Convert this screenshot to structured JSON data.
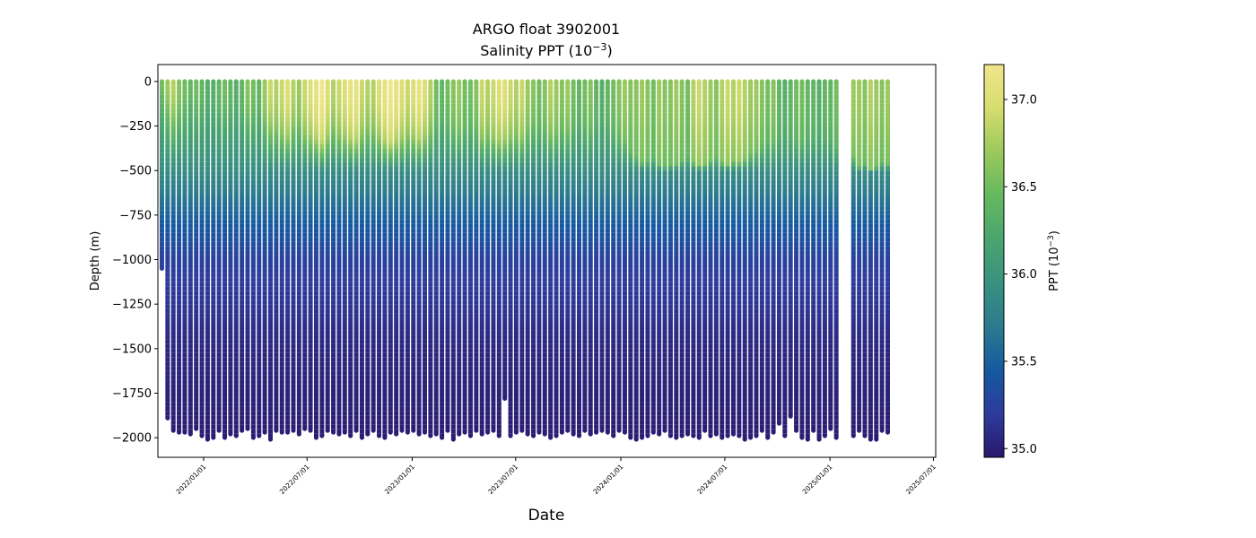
{
  "chart_data": {
    "type": "scatter",
    "title": "ARGO float 3902001",
    "subtitle_prefix": "Salinity PPT (10",
    "subtitle_exp": "−3",
    "subtitle_suffix": ")",
    "xlabel": "Date",
    "ylabel": "Depth (m)",
    "colorbar_label_prefix": "PPT (10",
    "colorbar_label_exp": "−3",
    "colorbar_label_suffix": ")",
    "x_range": [
      "2021-10-13",
      "2025-07-05"
    ],
    "x_ticks": [
      {
        "date": "2022-01-01",
        "label": "2022/01/01"
      },
      {
        "date": "2022-07-01",
        "label": "2022/07/01"
      },
      {
        "date": "2023-01-01",
        "label": "2023/01/01"
      },
      {
        "date": "2023-07-01",
        "label": "2023/07/01"
      },
      {
        "date": "2024-01-01",
        "label": "2024/01/01"
      },
      {
        "date": "2024-07-01",
        "label": "2024/07/01"
      },
      {
        "date": "2025-01-01",
        "label": "2025/01/01"
      },
      {
        "date": "2025-07-01",
        "label": "2025/07/01"
      }
    ],
    "ylim": [
      -2110,
      95
    ],
    "y_ticks": [
      0,
      -250,
      -500,
      -750,
      -1000,
      -1250,
      -1500,
      -1750,
      -2000
    ],
    "y_tick_labels": [
      "0",
      "−250",
      "−500",
      "−750",
      "−1000",
      "−1250",
      "−1500",
      "−1750",
      "−2000"
    ],
    "color_range": [
      34.95,
      37.2
    ],
    "colorbar_ticks": [
      35.0,
      35.5,
      36.0,
      36.5,
      37.0
    ],
    "colorbar_tick_labels": [
      "35.0",
      "35.5",
      "36.0",
      "36.5",
      "37.0"
    ],
    "colormap": [
      "#2a186c",
      "#2d3b9c",
      "#1559a0",
      "#2b7a8f",
      "#399080",
      "#4ba66e",
      "#67b95f",
      "#9cc95c",
      "#d7dd6e",
      "#f0e68c"
    ],
    "profiles": {
      "start_date": "2021-10-20",
      "interval_days": 10,
      "gap_after_index": 118,
      "gap_days": 20,
      "max_depths": [
        -1050,
        -1890,
        -1960,
        -1970,
        -1970,
        -1980,
        -1950,
        -1990,
        -2010,
        -2000,
        -1960,
        -2000,
        -1980,
        -1990,
        -1960,
        -1950,
        -2000,
        -1990,
        -1970,
        -2010,
        -1960,
        -1970,
        -1970,
        -1960,
        -1980,
        -1950,
        -1960,
        -2000,
        -1990,
        -1960,
        -1970,
        -1980,
        -1970,
        -1990,
        -1960,
        -2000,
        -1980,
        -1960,
        -1990,
        -2000,
        -1970,
        -1980,
        -1960,
        -1970,
        -1960,
        -1980,
        -1970,
        -1990,
        -1980,
        -2000,
        -1960,
        -2010,
        -1980,
        -1970,
        -1990,
        -1960,
        -1980,
        -1970,
        -1960,
        -1990,
        -1780,
        -1990,
        -1970,
        -1960,
        -1980,
        -1990,
        -1970,
        -1980,
        -2000,
        -1990,
        -1970,
        -1960,
        -1980,
        -1990,
        -1960,
        -1980,
        -1970,
        -1960,
        -1970,
        -1990,
        -1960,
        -1970,
        -2000,
        -2010,
        -2000,
        -1990,
        -1970,
        -1980,
        -1960,
        -1990,
        -2000,
        -1990,
        -1980,
        -1990,
        -2000,
        -1960,
        -1990,
        -1980,
        -2000,
        -1990,
        -1980,
        -1990,
        -2010,
        -2000,
        -1990,
        -1960,
        -2000,
        -1970,
        -1920,
        -1990,
        -1880,
        -1960,
        -2000,
        -2010,
        -1960,
        -2010,
        -1990,
        -1950,
        -2000,
        -1990,
        -1960,
        -1990,
        -2010,
        -2010,
        -1960,
        -1970
      ],
      "surface_salinity": [
        36.5,
        36.7,
        36.8,
        36.6,
        36.5,
        36.4,
        36.5,
        36.4,
        36.3,
        36.3,
        36.4,
        36.5,
        36.4,
        36.3,
        36.4,
        36.6,
        36.5,
        36.4,
        36.7,
        36.9,
        36.8,
        36.9,
        37.0,
        36.8,
        36.7,
        36.9,
        37.0,
        37.1,
        37.2,
        37.0,
        36.8,
        36.9,
        37.0,
        37.1,
        37.1,
        36.9,
        36.8,
        36.8,
        37.0,
        37.1,
        37.2,
        37.1,
        37.0,
        36.9,
        37.0,
        37.1,
        37.0,
        36.8,
        36.5,
        36.4,
        36.5,
        36.6,
        36.7,
        36.5,
        36.5,
        36.6,
        36.9,
        36.8,
        36.9,
        37.0,
        37.0,
        36.9,
        36.8,
        36.9,
        36.7,
        36.6,
        36.5,
        36.6,
        36.8,
        36.7,
        36.6,
        36.7,
        36.5,
        36.4,
        36.5,
        36.6,
        36.4,
        36.3,
        36.4,
        36.5,
        36.6,
        36.7,
        36.6,
        36.6,
        36.7,
        36.6,
        36.5,
        36.7,
        36.6,
        36.6,
        36.7,
        36.6,
        36.5,
        36.8,
        36.9,
        36.8,
        36.7,
        36.6,
        36.8,
        36.9,
        36.8,
        36.9,
        36.8,
        36.7,
        36.7,
        36.6,
        36.5,
        36.6,
        36.4,
        36.3,
        36.4,
        36.5,
        36.5,
        36.4,
        36.4,
        36.3,
        36.4,
        36.4,
        36.5,
        36.7,
        36.7,
        36.6,
        36.8,
        36.7,
        36.6,
        36.7
      ],
      "mixed_layer_depth": [
        80,
        150,
        200,
        180,
        140,
        120,
        150,
        130,
        110,
        120,
        150,
        160,
        140,
        120,
        150,
        200,
        180,
        150,
        220,
        250,
        260,
        280,
        300,
        250,
        230,
        280,
        300,
        320,
        340,
        300,
        260,
        280,
        300,
        320,
        330,
        290,
        260,
        270,
        300,
        330,
        350,
        330,
        310,
        290,
        300,
        320,
        300,
        270,
        230,
        210,
        240,
        260,
        280,
        250,
        240,
        260,
        300,
        290,
        310,
        330,
        320,
        300,
        290,
        310,
        270,
        250,
        240,
        260,
        290,
        280,
        260,
        270,
        240,
        220,
        240,
        260,
        230,
        210,
        230,
        260,
        290,
        320,
        380,
        420,
        450,
        440,
        420,
        460,
        480,
        470,
        460,
        440,
        420,
        450,
        470,
        460,
        440,
        420,
        450,
        460,
        440,
        450,
        430,
        400,
        380,
        350,
        320,
        340,
        300,
        280,
        300,
        320,
        330,
        310,
        300,
        280,
        300,
        310,
        350,
        420,
        480,
        460,
        500,
        480,
        450,
        460
      ],
      "profile_salinity_at_depth": [
        {
          "depth": 0,
          "note": "surface"
        },
        {
          "depth": -500,
          "salinity": 35.9
        },
        {
          "depth": -800,
          "salinity": 35.45
        },
        {
          "depth": -1000,
          "salinity": 35.25
        },
        {
          "depth": -1500,
          "salinity": 35.05
        },
        {
          "depth": -2000,
          "salinity": 34.98
        }
      ]
    }
  }
}
